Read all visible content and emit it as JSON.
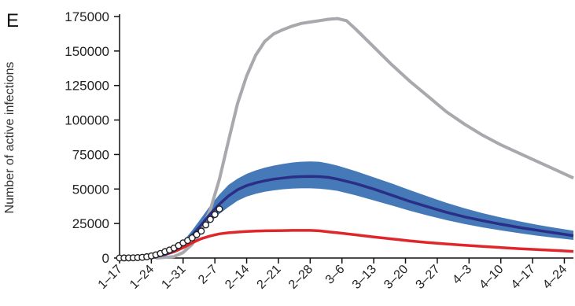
{
  "panel_label": "E",
  "colors": {
    "gray": "#a8a8ad",
    "blue_band": "#4579b8",
    "blue_line": "#2a2e86",
    "red": "#e0262a",
    "points_fill": "#ffffff",
    "points_stroke": "#222222"
  },
  "chart_data": {
    "type": "line",
    "title": "",
    "xlabel": "",
    "ylabel": "Number of active infections",
    "ylim": [
      0,
      175000
    ],
    "yticks": [
      0,
      25000,
      50000,
      75000,
      100000,
      125000,
      150000,
      175000
    ],
    "x_tick_labels": [
      "1–17",
      "1–24",
      "1–31",
      "2–7",
      "2–14",
      "2–21",
      "2–28",
      "3–6",
      "3–13",
      "3–20",
      "3–27",
      "4–3",
      "4–10",
      "4–17",
      "4–24"
    ],
    "x_unit": "days since Jan 17",
    "xlim": [
      0,
      100
    ],
    "grid": false,
    "legend": "none",
    "series": [
      {
        "name": "gray",
        "color": "#a8a8ad",
        "x": [
          8,
          12,
          14,
          16,
          18,
          20,
          22,
          24,
          26,
          28,
          30,
          32,
          34,
          36,
          38,
          40,
          42,
          44,
          46,
          48,
          50,
          52,
          56,
          60,
          64,
          68,
          72,
          76,
          80,
          84,
          88,
          92,
          96,
          100
        ],
        "y": [
          0,
          1000,
          4000,
          10000,
          20000,
          35000,
          57000,
          85000,
          112000,
          132000,
          147000,
          157000,
          162500,
          165500,
          168000,
          170000,
          171000,
          172000,
          173000,
          173500,
          172000,
          166000,
          153000,
          140000,
          128000,
          117000,
          106000,
          97000,
          89000,
          82000,
          76000,
          70000,
          64000,
          58000
        ]
      },
      {
        "name": "red",
        "color": "#e0262a",
        "x": [
          0,
          4,
          8,
          10,
          12,
          14,
          16,
          18,
          20,
          22,
          24,
          26,
          28,
          30,
          32,
          34,
          36,
          38,
          40,
          42,
          44,
          46,
          48,
          52,
          56,
          60,
          64,
          68,
          72,
          76,
          80,
          84,
          88,
          92,
          96,
          100
        ],
        "y": [
          0,
          200,
          1200,
          2500,
          4500,
          7500,
          11000,
          14000,
          16000,
          17500,
          18300,
          18800,
          19200,
          19500,
          19700,
          19800,
          19900,
          20000,
          20000,
          20000,
          19700,
          19000,
          18300,
          16800,
          15300,
          13800,
          12400,
          11200,
          10200,
          9300,
          8400,
          7600,
          6800,
          6100,
          5500,
          4800
        ]
      },
      {
        "name": "blue",
        "color": "#2a2e86",
        "x": [
          4,
          6,
          8,
          10,
          12,
          14,
          16,
          18,
          20,
          22,
          24,
          26,
          28,
          30,
          32,
          34,
          36,
          38,
          40,
          42,
          44,
          46,
          48,
          52,
          56,
          60,
          64,
          68,
          72,
          76,
          80,
          84,
          88,
          92,
          96,
          100
        ],
        "y": [
          0,
          300,
          1000,
          2500,
          5500,
          10000,
          16500,
          24000,
          32000,
          39000,
          45000,
          49500,
          52500,
          54500,
          56000,
          57200,
          58000,
          58700,
          59000,
          59100,
          59000,
          58400,
          57200,
          54000,
          50000,
          45500,
          41000,
          37000,
          33200,
          29800,
          27000,
          24500,
          22200,
          20100,
          18200,
          16200
        ],
        "upper": [
          0,
          400,
          1200,
          3000,
          6500,
          12000,
          20000,
          29000,
          38000,
          46000,
          53000,
          57500,
          61000,
          63500,
          65500,
          67000,
          68200,
          69200,
          69800,
          70000,
          69800,
          68500,
          67000,
          63000,
          58500,
          54000,
          49200,
          44500,
          40000,
          36000,
          32500,
          29400,
          26600,
          24100,
          21900,
          19800
        ],
        "lower": [
          0,
          200,
          800,
          2000,
          4500,
          8000,
          13000,
          19000,
          26000,
          32000,
          37000,
          41500,
          44500,
          46500,
          48000,
          49000,
          49800,
          50300,
          50500,
          50500,
          50200,
          49600,
          48700,
          45500,
          41800,
          38000,
          34200,
          30700,
          27500,
          24700,
          22200,
          20000,
          18000,
          16200,
          14600,
          13100
        ]
      },
      {
        "name": "observed",
        "type": "scatter",
        "x": [
          0,
          1,
          2,
          3,
          4,
          5,
          6,
          7,
          8,
          9,
          10,
          11,
          12,
          13,
          14,
          15,
          16,
          17,
          18,
          19,
          20,
          21,
          22
        ],
        "y": [
          0,
          40,
          80,
          150,
          300,
          500,
          900,
          1500,
          2300,
          3300,
          4600,
          5800,
          7200,
          9000,
          11000,
          12700,
          14600,
          17000,
          19500,
          24000,
          28000,
          31500,
          35500
        ]
      }
    ]
  }
}
